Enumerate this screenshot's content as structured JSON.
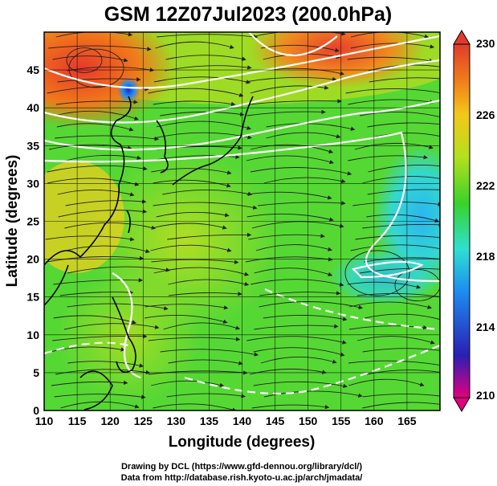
{
  "title": "GSM 12Z07Jul2023 (200.0hPa)",
  "map": {
    "xlabel": "Longitude (degrees)",
    "ylabel": "Latitude (degrees)",
    "lon_range": [
      110,
      170
    ],
    "lat_range": [
      0,
      50
    ],
    "lon_ticks": [
      110,
      115,
      120,
      125,
      130,
      135,
      140,
      145,
      150,
      155,
      160,
      165
    ],
    "lat_ticks": [
      0,
      5,
      10,
      15,
      20,
      25,
      30,
      35,
      40,
      45
    ],
    "grid": true
  },
  "colorbar": {
    "labels": [
      "230",
      "226",
      "222",
      "218",
      "214",
      "210"
    ],
    "range": [
      210,
      230
    ],
    "colors": [
      "#e3007f",
      "#2a1fb4",
      "#1d8cf0",
      "#2ee0d2",
      "#39d22a",
      "#b3e01c",
      "#f2c81a",
      "#f07a1a",
      "#e03c2a"
    ]
  },
  "credits": {
    "line1": "Drawing by DCL (https://www.gfd-dennou.org/library/dcl/)",
    "line2": "Data from http://database.rish.kyoto-u.ac.jp/arch/jmadata/"
  }
}
